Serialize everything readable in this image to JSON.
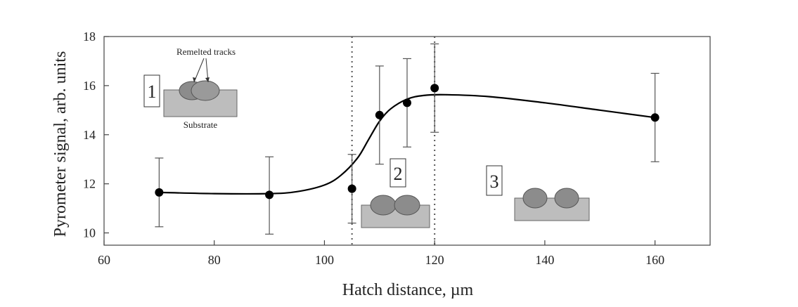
{
  "chart_data": {
    "type": "scatter",
    "xlabel": "Hatch distance, µm",
    "ylabel": "Pyrometer signal, arb. units",
    "xlim": [
      60,
      170
    ],
    "ylim": [
      9.5,
      18
    ],
    "xticks": [
      60,
      80,
      100,
      120,
      140,
      160
    ],
    "yticks": [
      10,
      12,
      14,
      16,
      18
    ],
    "grid": false,
    "series": [
      {
        "points": [
          {
            "x": 70,
            "y": 11.65,
            "err_low": 10.25,
            "err_high": 13.05
          },
          {
            "x": 90,
            "y": 11.55,
            "err_low": 9.95,
            "err_high": 13.1
          },
          {
            "x": 105,
            "y": 11.8,
            "err_low": 10.4,
            "err_high": 13.2
          },
          {
            "x": 110,
            "y": 14.8,
            "err_low": 12.8,
            "err_high": 16.8
          },
          {
            "x": 115,
            "y": 15.3,
            "err_low": 13.5,
            "err_high": 17.1
          },
          {
            "x": 120,
            "y": 15.9,
            "err_low": 14.1,
            "err_high": 17.7
          },
          {
            "x": 160,
            "y": 14.7,
            "err_low": 12.9,
            "err_high": 16.5
          }
        ]
      }
    ],
    "fit_curve": [
      [
        70,
        11.65
      ],
      [
        80,
        11.6
      ],
      [
        90,
        11.6
      ],
      [
        95,
        11.68
      ],
      [
        100,
        11.95
      ],
      [
        103,
        12.35
      ],
      [
        106,
        13.05
      ],
      [
        108,
        13.8
      ],
      [
        110,
        14.55
      ],
      [
        112,
        15.05
      ],
      [
        115,
        15.45
      ],
      [
        118,
        15.6
      ],
      [
        122,
        15.63
      ],
      [
        130,
        15.55
      ],
      [
        140,
        15.3
      ],
      [
        150,
        15.0
      ],
      [
        160,
        14.7
      ]
    ],
    "vertical_lines": [
      105,
      120
    ],
    "regions": [
      "1",
      "2",
      "3"
    ],
    "annotations": {
      "remelted": "Remelted tracks",
      "substrate": "Substrate"
    }
  }
}
